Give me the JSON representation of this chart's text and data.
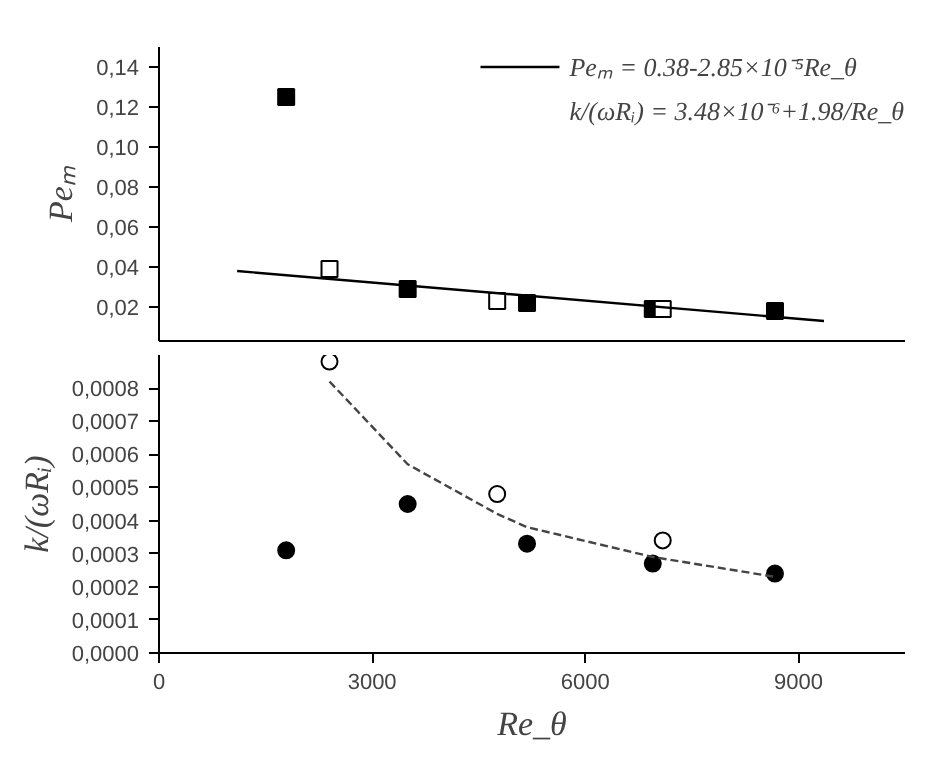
{
  "chart_data": [
    {
      "type": "scatter",
      "ylabel": "Peₘ",
      "xlim": [
        0,
        10500
      ],
      "ylim": [
        0.003,
        0.15
      ],
      "tick_labels": "y",
      "legend": "top right",
      "yticks": [
        {
          "value": 0.02,
          "label": "0,02"
        },
        {
          "value": 0.04,
          "label": "0,04"
        },
        {
          "value": 0.06,
          "label": "0,06"
        },
        {
          "value": 0.08,
          "label": "0,08"
        },
        {
          "value": 0.1,
          "label": "0,10"
        },
        {
          "value": 0.12,
          "label": "0,12"
        },
        {
          "value": 0.14,
          "label": "0,14"
        }
      ],
      "series": [
        {
          "color": "#000000",
          "marker": "square",
          "x": [
            1790,
            3500,
            5180,
            6950,
            8670
          ],
          "values": [
            0.125,
            0.029,
            0.022,
            0.019,
            0.018
          ]
        },
        {
          "color": "#ffffff",
          "marker": "square",
          "x": [
            2400,
            4760,
            7090
          ],
          "values": [
            0.039,
            0.023,
            0.019
          ]
        },
        {
          "type": "line",
          "name": "Peₘ = 0.38-2.85×10⁻⁵Re_θ",
          "color": "#000000",
          "line_style": "solid",
          "x": [
            1100,
            9360
          ],
          "values": [
            0.038,
            0.013
          ]
        }
      ]
    },
    {
      "type": "scatter",
      "ylabel": "k/(ωRᵢ)",
      "xlabel": "Re_θ",
      "xlim": [
        0,
        10500
      ],
      "ylim": [
        0,
        0.0009
      ],
      "xticks": [
        0,
        3000,
        6000,
        9000
      ],
      "yticks": [
        {
          "value": 0,
          "label": "0,0000"
        },
        {
          "value": 0.0001,
          "label": "0,0001"
        },
        {
          "value": 0.0002,
          "label": "0,0002"
        },
        {
          "value": 0.0003,
          "label": "0,0003"
        },
        {
          "value": 0.0004,
          "label": "0,0004"
        },
        {
          "value": 0.0005,
          "label": "0,0005"
        },
        {
          "value": 0.0006,
          "label": "0,0006"
        },
        {
          "value": 0.0007,
          "label": "0,0007"
        },
        {
          "value": 0.0008,
          "label": "0,0008"
        }
      ],
      "series": [
        {
          "color": "#000000",
          "marker": "circle",
          "x": [
            1790,
            3500,
            5180,
            6950,
            8670
          ],
          "values": [
            0.00031,
            0.00045,
            0.00033,
            0.00027,
            0.00024
          ]
        },
        {
          "color": "#ffffff",
          "marker": "circle",
          "x": [
            2400,
            4760,
            7090
          ],
          "values": [
            0.00088,
            0.00048,
            0.00034
          ]
        },
        {
          "type": "line",
          "name": "k/(ωRᵢ) = 3.48×10⁻⁶+1.98/Re_θ",
          "color": "#444444",
          "line_style": "dashed",
          "x": [
            2400,
            3500,
            4760,
            5180,
            6950,
            8670
          ],
          "values": [
            0.00082,
            0.00057,
            0.00042,
            0.00038,
            0.00029,
            0.00023
          ]
        }
      ]
    }
  ]
}
